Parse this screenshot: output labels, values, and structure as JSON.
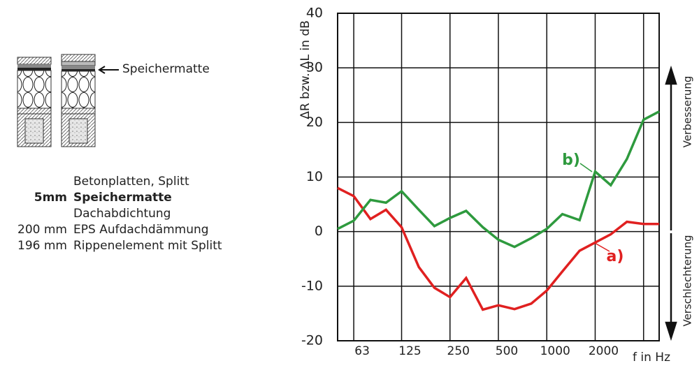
{
  "layers": [
    {
      "name": "Betonplatten, Splitt"
    },
    {
      "thickness": "5mm",
      "name": "Speichermatte"
    },
    {
      "name": "Dachabdichtung"
    },
    {
      "thickness": "200 mm",
      "name": "EPS Aufdachdämmung"
    },
    {
      "thickness": "196 mm",
      "name": "Rippenelement mit Splitt"
    }
  ],
  "diagram_label": "Speichermatte",
  "chart_data": {
    "type": "line",
    "y_label": "ΔR bzw. ΔL in dB",
    "x_label": "f in Hz",
    "annotations": [
      "Verbesserung",
      "Verschlechterung"
    ],
    "x": [
      50,
      63,
      80,
      100,
      125,
      160,
      200,
      250,
      315,
      400,
      500,
      630,
      800,
      1000,
      1250,
      1600,
      2000,
      2500,
      3150,
      4000,
      5000
    ],
    "series": [
      {
        "name": "a)",
        "color": "#e02020",
        "values": [
          8.0,
          6.5,
          2.3,
          4.0,
          0.8,
          -6.5,
          -10.3,
          -12.0,
          -8.5,
          -14.3,
          -13.5,
          -14.2,
          -13.2,
          -10.8,
          -7.3,
          -3.5,
          -2.0,
          -0.5,
          1.8,
          1.4,
          1.4
        ]
      },
      {
        "name": "b)",
        "color": "#2e9a3e",
        "values": [
          0.5,
          2.0,
          5.8,
          5.3,
          7.4,
          4.0,
          1.0,
          2.5,
          3.8,
          0.8,
          -1.5,
          -2.8,
          -1.2,
          0.5,
          3.2,
          2.1,
          11.0,
          8.5,
          13.3,
          20.5,
          22.0
        ]
      }
    ],
    "xlim": [
      50,
      5000
    ],
    "x_log": true,
    "xticks": [
      63,
      125,
      250,
      500,
      1000,
      2000,
      {
        "value": 4000,
        "label": ""
      }
    ],
    "ylim": [
      -20,
      40
    ],
    "yticks": [
      40,
      30,
      20,
      10,
      0,
      -10,
      -20
    ],
    "grid": true
  }
}
